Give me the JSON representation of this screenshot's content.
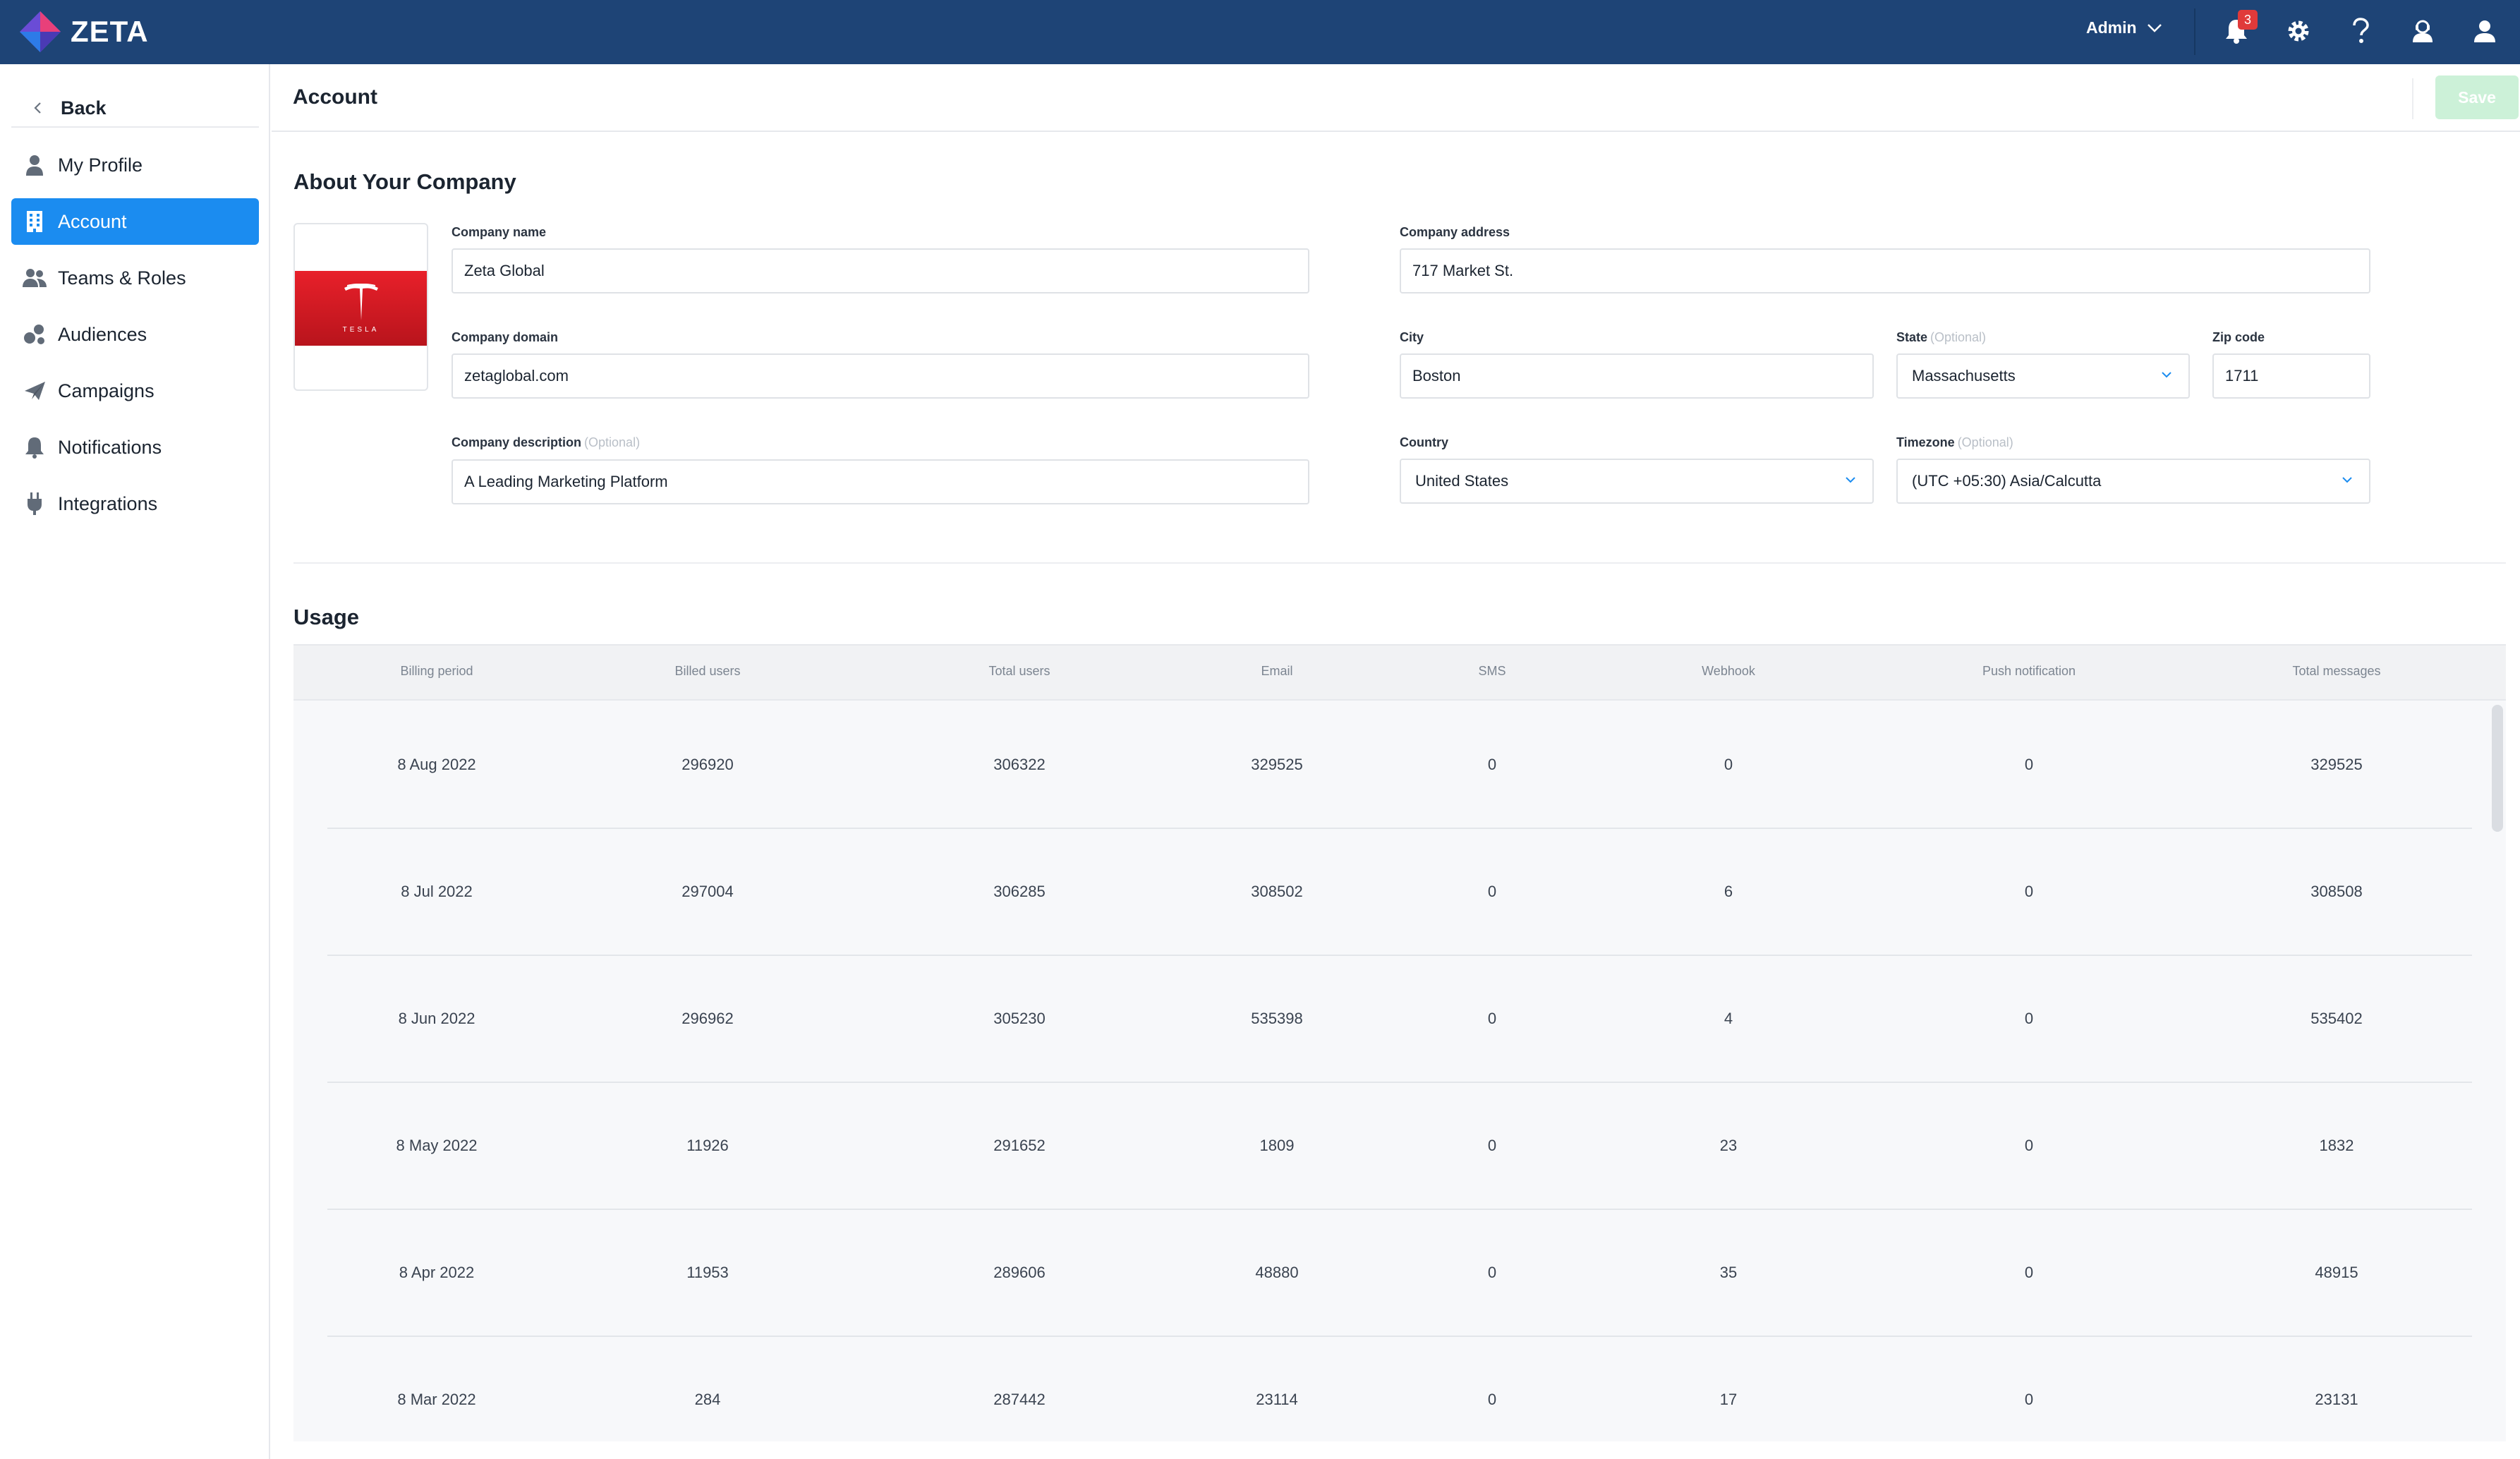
{
  "app": {
    "name": "ZETA"
  },
  "topbar": {
    "user_menu_label": "Admin",
    "notification_count": "3",
    "icons": [
      "bell-icon",
      "gear-icon",
      "help-icon",
      "agent-icon",
      "user-icon"
    ]
  },
  "sidebar": {
    "back_label": "Back",
    "items": [
      {
        "label": "My Profile",
        "icon": "person-icon",
        "active": false
      },
      {
        "label": "Account",
        "icon": "building-icon",
        "active": true
      },
      {
        "label": "Teams & Roles",
        "icon": "team-icon",
        "active": false
      },
      {
        "label": "Audiences",
        "icon": "audiences-icon",
        "active": false
      },
      {
        "label": "Campaigns",
        "icon": "paper-plane-icon",
        "active": false
      },
      {
        "label": "Notifications",
        "icon": "bell-icon",
        "active": false
      },
      {
        "label": "Integrations",
        "icon": "plug-icon",
        "active": false
      }
    ]
  },
  "header": {
    "title": "Account",
    "save_label": "Save"
  },
  "company": {
    "section_title": "About Your Company",
    "logo_text": "TESLA",
    "optional_text": "(Optional)",
    "fields": {
      "name": {
        "label": "Company name",
        "value": "Zeta Global"
      },
      "domain": {
        "label": "Company domain",
        "value": "zetaglobal.com"
      },
      "description": {
        "label": "Company description",
        "value": "A Leading Marketing Platform"
      },
      "address": {
        "label": "Company address",
        "value": "717 Market St."
      },
      "city": {
        "label": "City",
        "value": "Boston"
      },
      "state": {
        "label": "State",
        "value": "Massachusetts"
      },
      "zip": {
        "label": "Zip code",
        "value": "1711"
      },
      "country": {
        "label": "Country",
        "value": "United States"
      },
      "timezone": {
        "label": "Timezone",
        "value": "(UTC +05:30) Asia/Calcutta"
      }
    }
  },
  "usage": {
    "section_title": "Usage",
    "columns": [
      "Billing period",
      "Billed users",
      "Total users",
      "Email",
      "SMS",
      "Webhook",
      "Push notification",
      "Total messages"
    ],
    "rows": [
      [
        "8 Aug 2022",
        "296920",
        "306322",
        "329525",
        "0",
        "0",
        "0",
        "329525"
      ],
      [
        "8 Jul 2022",
        "297004",
        "306285",
        "308502",
        "0",
        "6",
        "0",
        "308508"
      ],
      [
        "8 Jun 2022",
        "296962",
        "305230",
        "535398",
        "0",
        "4",
        "0",
        "535402"
      ],
      [
        "8 May 2022",
        "11926",
        "291652",
        "1809",
        "0",
        "23",
        "0",
        "1832"
      ],
      [
        "8 Apr 2022",
        "11953",
        "289606",
        "48880",
        "0",
        "35",
        "0",
        "48915"
      ],
      [
        "8 Mar 2022",
        "284",
        "287442",
        "23114",
        "0",
        "17",
        "0",
        "23131"
      ]
    ]
  },
  "colors": {
    "topbar": "#1e4476",
    "accent": "#1b8cf0",
    "save_disabled": "#ccf1d8",
    "badge": "#e03a3a"
  }
}
